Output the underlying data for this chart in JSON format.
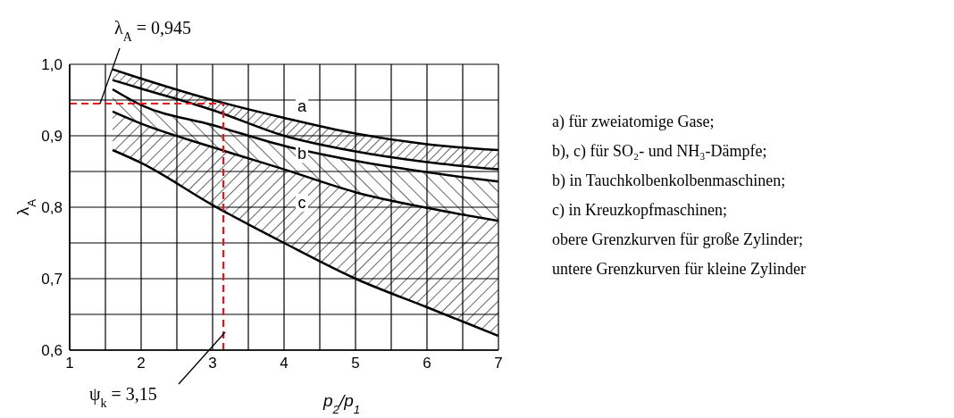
{
  "chart_data": {
    "type": "line",
    "xlabel": "p$_{2}$/p$_{1}$",
    "ylabel": "λ$_{A}$",
    "x": [
      1.6,
      2,
      3,
      4,
      5,
      6,
      7
    ],
    "series": [
      {
        "name": "a",
        "color": "#000000",
        "values": [
          0.993,
          0.98,
          0.95,
          0.925,
          0.903,
          0.888,
          0.88
        ],
        "lower": [
          0.978,
          0.966,
          0.936,
          0.9,
          0.878,
          0.863,
          0.853
        ],
        "upper": [
          0.993,
          0.98,
          0.95,
          0.925,
          0.903,
          0.888,
          0.88
        ]
      },
      {
        "color": "#000000",
        "values": [
          0.978,
          0.966,
          0.936,
          0.9,
          0.878,
          0.863,
          0.853
        ]
      },
      {
        "name": "b",
        "color": "#000000",
        "values": [
          0.965,
          0.943,
          0.915,
          0.886,
          0.865,
          0.849,
          0.836
        ],
        "lower": [
          0.934,
          0.917,
          0.884,
          0.853,
          0.821,
          0.799,
          0.781
        ],
        "upper": [
          0.965,
          0.943,
          0.915,
          0.886,
          0.865,
          0.849,
          0.836
        ]
      },
      {
        "name": "c",
        "color": "#000000",
        "values": [
          0.934,
          0.917,
          0.884,
          0.853,
          0.821,
          0.799,
          0.781
        ],
        "lower": [
          0.88,
          0.862,
          0.803,
          0.75,
          0.7,
          0.66,
          0.62
        ],
        "upper": [
          0.934,
          0.917,
          0.884,
          0.853,
          0.821,
          0.799,
          0.781
        ]
      },
      {
        "color": "#000000",
        "values": [
          0.88,
          0.862,
          0.803,
          0.75,
          0.7,
          0.66,
          0.62
        ]
      }
    ],
    "xlim": [
      1,
      7
    ],
    "xticks": [
      1,
      {
        "value": 1.5,
        "label": null
      },
      2,
      {
        "value": 2.5,
        "label": null
      },
      3,
      {
        "value": 3.5,
        "label": null
      },
      4,
      {
        "value": 4.5,
        "label": null
      },
      5,
      {
        "value": 5.5,
        "label": null
      },
      6,
      {
        "value": 6.5,
        "label": null
      },
      7
    ],
    "ylim": [
      0.6,
      1.0
    ],
    "yticks": [
      {
        "value": 0.6,
        "label": "0,6"
      },
      {
        "value": 0.65,
        "label": null
      },
      {
        "value": 0.7,
        "label": "0,7"
      },
      {
        "value": 0.75,
        "label": null
      },
      {
        "value": 0.8,
        "label": "0,8"
      },
      {
        "value": 0.85,
        "label": null
      },
      {
        "value": 0.9,
        "label": "0,9"
      },
      {
        "value": 0.95,
        "label": null
      },
      {
        "value": 1.0,
        "label": "1,0"
      }
    ],
    "grid": true,
    "legend": false,
    "ref_lines": [
      {
        "axis": "y",
        "value": 0.945,
        "label": "λ$_{A}$ = 0,945",
        "color": "#e8141b",
        "line_style": "dashed"
      },
      {
        "axis": "x",
        "value": 3.15,
        "label": "ψ$_{k}$ = 3,15",
        "color": "#e8141b",
        "line_style": "dashed"
      }
    ],
    "annotations": [
      "a) für zweiatomige Gase;",
      "b), c) für SO₂- und NH₃-Dämpfe;",
      "b) in Tauchkolbenkolbenmaschinen;",
      "c) in Kreuzkopfmaschinen;",
      "obere Grenzkurven für große Zylinder;",
      "untere Grenzkurven für kleine Zylinder"
    ]
  }
}
